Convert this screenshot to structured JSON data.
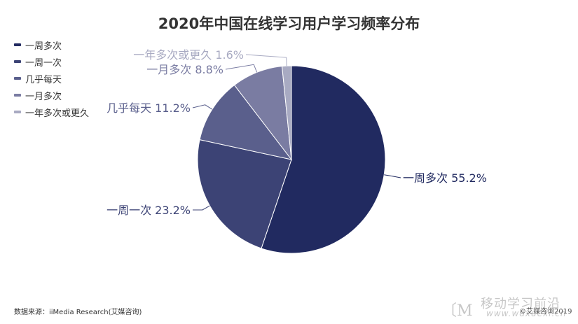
{
  "chart_data": {
    "type": "pie",
    "title": "2020年中国在线学习用户学习频率分布",
    "categories": [
      "一周多次",
      "一周一次",
      "几乎每天",
      "一月多次",
      "一年多次或更久"
    ],
    "values": [
      55.2,
      23.2,
      11.2,
      8.8,
      1.6
    ],
    "unit": "%",
    "slice_labels": [
      "一周多次 55.2%",
      "一周一次 23.2%",
      "几乎每天 11.2%",
      "一月多次 8.8%",
      "一年多次或更久 1.6%"
    ],
    "colors": [
      "#212a60",
      "#3c4375",
      "#5a5f8c",
      "#7a7ca2",
      "#a8aac2"
    ],
    "start_angle_deg": 0,
    "direction": "clockwise",
    "legend_position": "top-left",
    "legend": [
      "一周多次",
      "一周一次",
      "几乎每天",
      "一月多次",
      "一年多次或更久"
    ]
  },
  "source_note": "数据来源：iiMedia Research(艾媒咨询)",
  "watermark": {
    "glyph": "〔M",
    "line1": "移动学习前沿",
    "line2": "www.wdxuexi.cn"
  },
  "copyright": "©艾媒咨询2019"
}
